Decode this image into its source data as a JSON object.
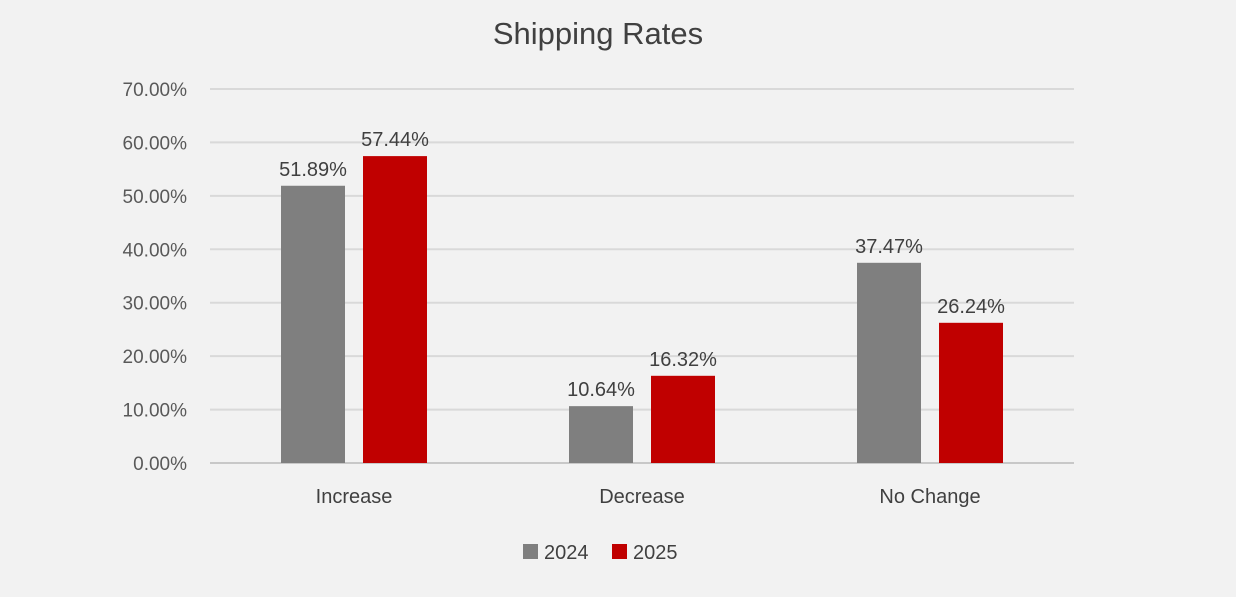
{
  "chart_data": {
    "type": "bar",
    "title": "Shipping Rates",
    "categories": [
      "Increase",
      "Decrease",
      "No Change"
    ],
    "series": [
      {
        "name": "2024",
        "color": "#7f7f7f",
        "values": [
          51.89,
          10.64,
          37.47
        ],
        "labels": [
          "51.89%",
          "10.64%",
          "37.47%"
        ]
      },
      {
        "name": "2025",
        "color": "#c00000",
        "values": [
          57.44,
          16.32,
          26.24
        ],
        "labels": [
          "57.44%",
          "16.32%",
          "26.24%"
        ]
      }
    ],
    "ylim": [
      0,
      70
    ],
    "yticks": [
      "0.00%",
      "10.00%",
      "20.00%",
      "30.00%",
      "40.00%",
      "50.00%",
      "60.00%",
      "70.00%"
    ],
    "grid": true,
    "legend": "bottom"
  }
}
